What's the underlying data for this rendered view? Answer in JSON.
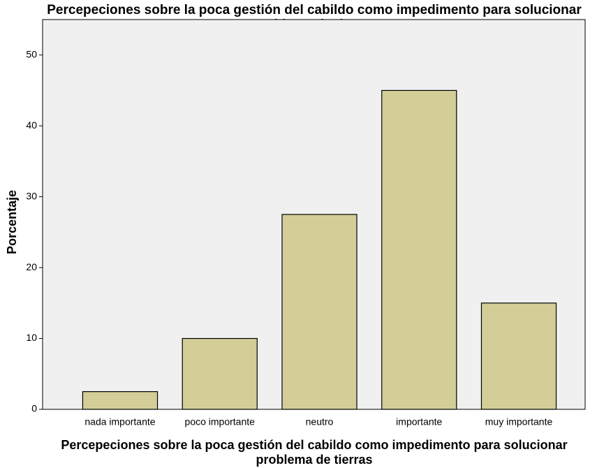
{
  "chart_data": {
    "type": "bar",
    "title": "Percepeciones sobre la poca gestión del cabildo como impedimento para solucionar problema de tierras",
    "x_label": "Percepeciones sobre la poca gestión del cabildo como impedimento para solucionar problema de tierras",
    "y_label": "Porcentaje",
    "categories": [
      "nada importante",
      "poco importante",
      "neutro",
      "importante",
      "muy importante"
    ],
    "values": [
      2.5,
      10,
      27.5,
      45,
      15
    ],
    "color": "#d3ce97",
    "ylim": [
      0,
      55
    ],
    "yticks": [
      0,
      10,
      20,
      30,
      40,
      50
    ],
    "grid": false
  }
}
